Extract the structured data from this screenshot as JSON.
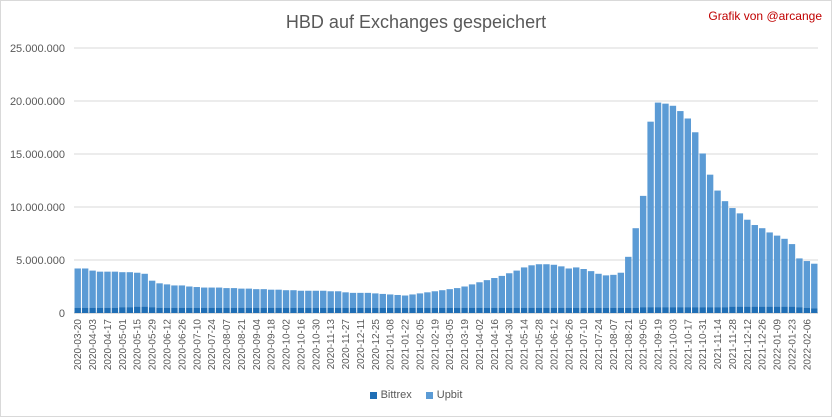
{
  "chart_data": {
    "type": "bar",
    "stacked": true,
    "title": "HBD auf Exchanges gespeichert",
    "credit": "Grafik von @arcange",
    "xlabel": "",
    "ylabel": "",
    "ylim": [
      0,
      25000000
    ],
    "y_ticks": [
      "25.000.000",
      "20.000.000",
      "15.000.000",
      "10.000.000",
      "5.000.000",
      "0"
    ],
    "y_tick_values": [
      25000000,
      20000000,
      15000000,
      10000000,
      5000000,
      0
    ],
    "grid": true,
    "legend_position": "bottom",
    "x_tick_labels": [
      "2020-03-20",
      "2020-04-03",
      "2020-04-17",
      "2020-05-01",
      "2020-05-15",
      "2020-05-29",
      "2020-06-12",
      "2020-06-26",
      "2020-07-10",
      "2020-07-24",
      "2020-08-07",
      "2020-08-21",
      "2020-09-04",
      "2020-09-18",
      "2020-10-02",
      "2020-10-16",
      "2020-10-30",
      "2020-11-13",
      "2020-11-27",
      "2020-12-11",
      "2020-12-25",
      "2021-01-08",
      "2021-01-22",
      "2021-02-05",
      "2021-02-19",
      "2021-03-05",
      "2021-03-19",
      "2021-04-02",
      "2021-04-16",
      "2021-04-30",
      "2021-05-14",
      "2021-05-28",
      "2021-06-12",
      "2021-06-26",
      "2021-07-10",
      "2021-07-24",
      "2021-08-07",
      "2021-08-21",
      "2021-09-05",
      "2021-09-19",
      "2021-10-03",
      "2021-10-17",
      "2021-10-31",
      "2021-11-14",
      "2021-11-28",
      "2021-12-12",
      "2021-12-26",
      "2022-01-09",
      "2022-01-23",
      "2022-02-06"
    ],
    "categories": [
      "2020-03-20",
      "2020-03-27",
      "2020-04-03",
      "2020-04-10",
      "2020-04-17",
      "2020-04-24",
      "2020-05-01",
      "2020-05-08",
      "2020-05-15",
      "2020-05-22",
      "2020-05-29",
      "2020-06-05",
      "2020-06-12",
      "2020-06-19",
      "2020-06-26",
      "2020-07-03",
      "2020-07-10",
      "2020-07-17",
      "2020-07-24",
      "2020-07-31",
      "2020-08-07",
      "2020-08-14",
      "2020-08-21",
      "2020-08-28",
      "2020-09-04",
      "2020-09-11",
      "2020-09-18",
      "2020-09-25",
      "2020-10-02",
      "2020-10-09",
      "2020-10-16",
      "2020-10-23",
      "2020-10-30",
      "2020-11-06",
      "2020-11-13",
      "2020-11-20",
      "2020-11-27",
      "2020-12-04",
      "2020-12-11",
      "2020-12-18",
      "2020-12-25",
      "2021-01-01",
      "2021-01-08",
      "2021-01-15",
      "2021-01-22",
      "2021-01-29",
      "2021-02-05",
      "2021-02-12",
      "2021-02-19",
      "2021-02-26",
      "2021-03-05",
      "2021-03-12",
      "2021-03-19",
      "2021-03-26",
      "2021-04-02",
      "2021-04-09",
      "2021-04-16",
      "2021-04-23",
      "2021-04-30",
      "2021-05-07",
      "2021-05-14",
      "2021-05-21",
      "2021-05-28",
      "2021-06-05",
      "2021-06-12",
      "2021-06-19",
      "2021-06-26",
      "2021-07-03",
      "2021-07-10",
      "2021-07-17",
      "2021-07-24",
      "2021-07-31",
      "2021-08-07",
      "2021-08-14",
      "2021-08-21",
      "2021-08-28",
      "2021-09-05",
      "2021-09-12",
      "2021-09-19",
      "2021-09-26",
      "2021-10-03",
      "2021-10-10",
      "2021-10-17",
      "2021-10-24",
      "2021-10-31",
      "2021-11-07",
      "2021-11-14",
      "2021-11-21",
      "2021-11-28",
      "2021-12-05",
      "2021-12-12",
      "2021-12-19",
      "2021-12-26",
      "2022-01-02",
      "2022-01-09",
      "2022-01-16",
      "2022-01-23",
      "2022-01-30",
      "2022-02-06",
      "2022-02-13"
    ],
    "series": [
      {
        "name": "Bittrex",
        "color": "#1f6eb5",
        "values": [
          500000,
          500000,
          500000,
          500000,
          500000,
          500000,
          550000,
          550000,
          600000,
          600000,
          550000,
          500000,
          500000,
          500000,
          500000,
          500000,
          500000,
          500000,
          500000,
          500000,
          500000,
          500000,
          500000,
          500000,
          500000,
          500000,
          500000,
          500000,
          500000,
          500000,
          500000,
          500000,
          500000,
          500000,
          500000,
          500000,
          500000,
          500000,
          500000,
          500000,
          500000,
          500000,
          500000,
          500000,
          500000,
          500000,
          500000,
          500000,
          500000,
          500000,
          500000,
          500000,
          500000,
          500000,
          500000,
          500000,
          500000,
          500000,
          500000,
          500000,
          500000,
          500000,
          500000,
          500000,
          500000,
          500000,
          500000,
          500000,
          500000,
          500000,
          500000,
          500000,
          500000,
          500000,
          500000,
          500000,
          550000,
          550000,
          550000,
          550000,
          550000,
          550000,
          550000,
          550000,
          550000,
          550000,
          550000,
          550000,
          600000,
          600000,
          600000,
          600000,
          600000,
          600000,
          600000,
          600000,
          600000,
          550000,
          500000,
          450000
        ]
      },
      {
        "name": "Upbit",
        "color": "#5b9bd5",
        "values": [
          3700000,
          3700000,
          3500000,
          3400000,
          3400000,
          3400000,
          3300000,
          3300000,
          3200000,
          3100000,
          2500000,
          2300000,
          2200000,
          2100000,
          2100000,
          2000000,
          1950000,
          1900000,
          1900000,
          1900000,
          1850000,
          1850000,
          1800000,
          1800000,
          1750000,
          1750000,
          1700000,
          1700000,
          1650000,
          1650000,
          1600000,
          1600000,
          1600000,
          1600000,
          1550000,
          1550000,
          1450000,
          1400000,
          1400000,
          1400000,
          1350000,
          1300000,
          1250000,
          1200000,
          1150000,
          1250000,
          1350000,
          1450000,
          1550000,
          1650000,
          1750000,
          1850000,
          2000000,
          2200000,
          2400000,
          2600000,
          2800000,
          3000000,
          3250000,
          3500000,
          3800000,
          4000000,
          4100000,
          4100000,
          4050000,
          3900000,
          3700000,
          3800000,
          3650000,
          3450000,
          3200000,
          3050000,
          3100000,
          3300000,
          4800000,
          7500000,
          10500000,
          17500000,
          19300000,
          19200000,
          19000000,
          18500000,
          17800000,
          16500000,
          14500000,
          12500000,
          11000000,
          10000000,
          9300000,
          8800000,
          8200000,
          7700000,
          7400000,
          7000000,
          6700000,
          6400000,
          5900000,
          4600000,
          4400000,
          4200000
        ]
      }
    ]
  }
}
